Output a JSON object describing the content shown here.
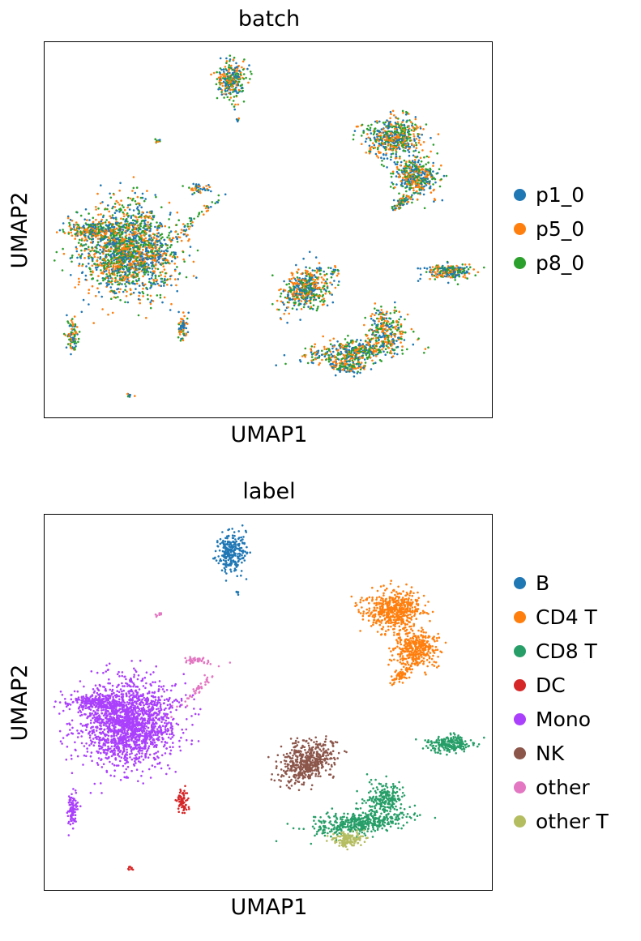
{
  "chart_data": [
    {
      "type": "scatter",
      "title": "batch",
      "xlabel": "UMAP1",
      "ylabel": "UMAP2",
      "grid": false,
      "ticks": false,
      "legend_placement": "right",
      "series": [
        {
          "name": "p1_0",
          "color": "#1f77b4"
        },
        {
          "name": "p5_0",
          "color": "#ff7f0e"
        },
        {
          "name": "p8_0",
          "color": "#2ca02c"
        }
      ]
    },
    {
      "type": "scatter",
      "title": "label",
      "xlabel": "UMAP1",
      "ylabel": "UMAP2",
      "grid": false,
      "ticks": false,
      "legend_placement": "right",
      "series": [
        {
          "name": "B",
          "color": "#1f77b4"
        },
        {
          "name": "CD4 T",
          "color": "#ff7f0e"
        },
        {
          "name": "CD8 T",
          "color": "#279e68"
        },
        {
          "name": "DC",
          "color": "#d62728"
        },
        {
          "name": "Mono",
          "color": "#aa40fc"
        },
        {
          "name": "NK",
          "color": "#8c564b"
        },
        {
          "name": "other",
          "color": "#e377c2"
        },
        {
          "name": "other T",
          "color": "#b5bd61"
        }
      ]
    }
  ]
}
